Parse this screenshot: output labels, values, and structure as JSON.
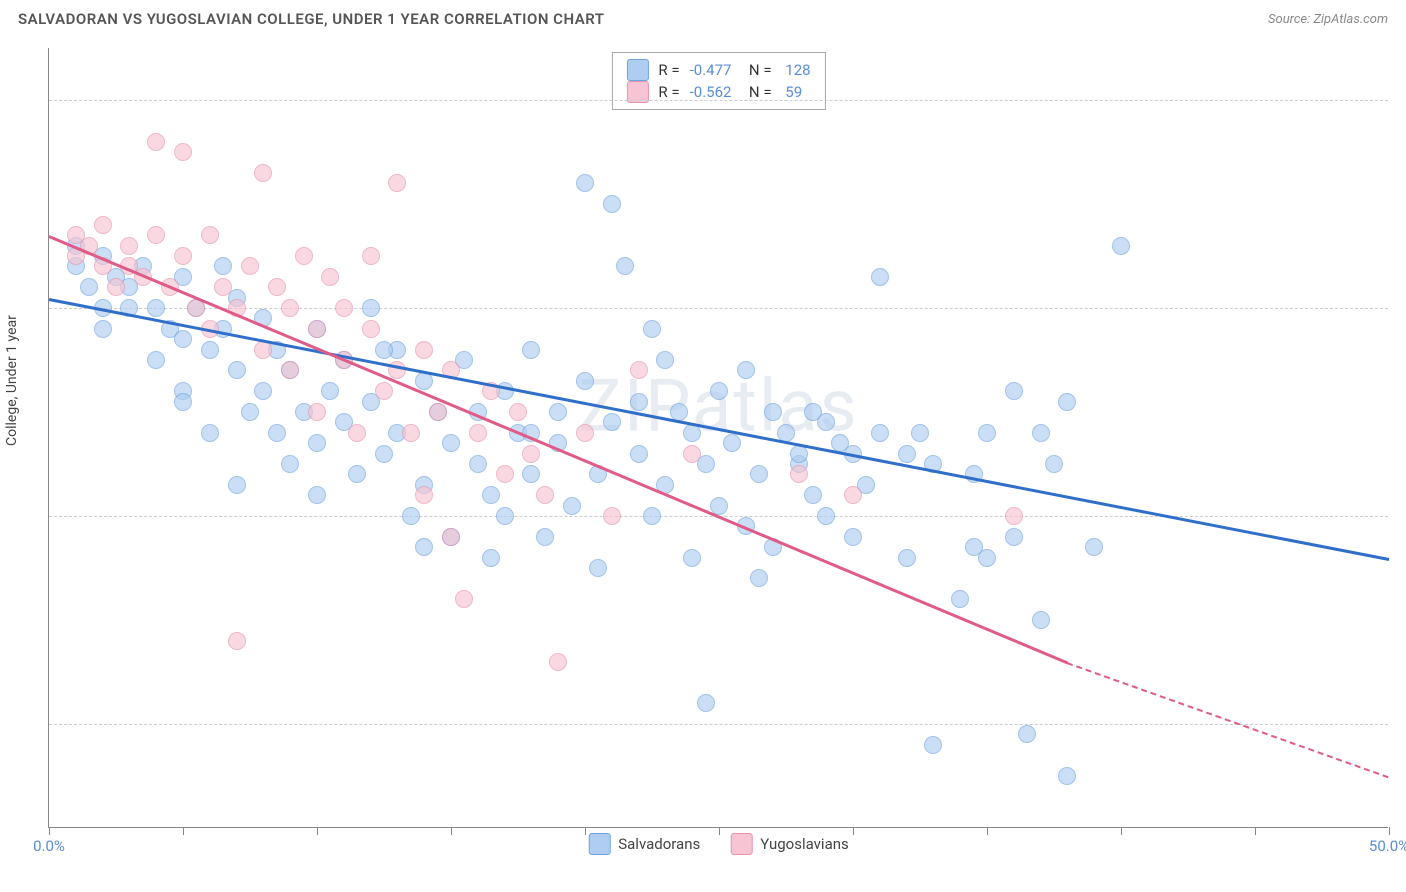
{
  "header": {
    "title": "SALVADORAN VS YUGOSLAVIAN COLLEGE, UNDER 1 YEAR CORRELATION CHART",
    "source_prefix": "Source: ",
    "source_name": "ZipAtlas.com"
  },
  "chart": {
    "type": "scatter",
    "ylabel": "College, Under 1 year",
    "watermark": "ZIPatlas",
    "background_color": "#ffffff",
    "grid_color": "#cccccc",
    "axis_color": "#888888",
    "label_color": "#5b8dd6",
    "xlim": [
      0,
      50
    ],
    "ylim": [
      10,
      85
    ],
    "x_ticks": [
      0,
      5,
      10,
      15,
      20,
      25,
      30,
      35,
      40,
      45,
      50
    ],
    "x_tick_labels": {
      "0": "0.0%",
      "50": "50.0%"
    },
    "y_gridlines": [
      20,
      40,
      60,
      80
    ],
    "y_tick_labels": {
      "20": "20.0%",
      "40": "40.0%",
      "60": "60.0%",
      "80": "80.0%"
    },
    "series": [
      {
        "name": "Salvadorans",
        "fill_color": "#aecdf0",
        "stroke_color": "#6fa3e0",
        "line_color": "#2f6fc9",
        "R": "-0.477",
        "N": "128",
        "trend_x1": 0,
        "trend_y1": 61,
        "trend_x2": 50,
        "trend_y2": 36,
        "points": [
          [
            1,
            66
          ],
          [
            1,
            64
          ],
          [
            1.5,
            62
          ],
          [
            2,
            65
          ],
          [
            2,
            60
          ],
          [
            2.5,
            63
          ],
          [
            2,
            58
          ],
          [
            3,
            62
          ],
          [
            3,
            60
          ],
          [
            3.5,
            64
          ],
          [
            4,
            55
          ],
          [
            4,
            60
          ],
          [
            4.5,
            58
          ],
          [
            5,
            63
          ],
          [
            5,
            57
          ],
          [
            5,
            52
          ],
          [
            5.5,
            60
          ],
          [
            6,
            56
          ],
          [
            6,
            48
          ],
          [
            6.5,
            58
          ],
          [
            7,
            61
          ],
          [
            7,
            54
          ],
          [
            7.5,
            50
          ],
          [
            8,
            59
          ],
          [
            8,
            52
          ],
          [
            8.5,
            56
          ],
          [
            9,
            54
          ],
          [
            9,
            45
          ],
          [
            9.5,
            50
          ],
          [
            10,
            58
          ],
          [
            10,
            47
          ],
          [
            10.5,
            52
          ],
          [
            11,
            49
          ],
          [
            11,
            55
          ],
          [
            11.5,
            44
          ],
          [
            12,
            51
          ],
          [
            12,
            60
          ],
          [
            12.5,
            46
          ],
          [
            13,
            56
          ],
          [
            13,
            48
          ],
          [
            13.5,
            40
          ],
          [
            14,
            53
          ],
          [
            14,
            43
          ],
          [
            14.5,
            50
          ],
          [
            15,
            47
          ],
          [
            15,
            38
          ],
          [
            15.5,
            55
          ],
          [
            16,
            45
          ],
          [
            16,
            50
          ],
          [
            16.5,
            42
          ],
          [
            17,
            52
          ],
          [
            17,
            40
          ],
          [
            17.5,
            48
          ],
          [
            18,
            44
          ],
          [
            18,
            56
          ],
          [
            18.5,
            38
          ],
          [
            19,
            50
          ],
          [
            19,
            47
          ],
          [
            19.5,
            41
          ],
          [
            20,
            72
          ],
          [
            20,
            53
          ],
          [
            20.5,
            44
          ],
          [
            21,
            70
          ],
          [
            21,
            49
          ],
          [
            21.5,
            64
          ],
          [
            22,
            46
          ],
          [
            22,
            51
          ],
          [
            22.5,
            40
          ],
          [
            23,
            55
          ],
          [
            23,
            43
          ],
          [
            23.5,
            50
          ],
          [
            24,
            36
          ],
          [
            24,
            48
          ],
          [
            24.5,
            22
          ],
          [
            25,
            52
          ],
          [
            25,
            41
          ],
          [
            25.5,
            47
          ],
          [
            26,
            39
          ],
          [
            26,
            54
          ],
          [
            26.5,
            44
          ],
          [
            27,
            50
          ],
          [
            27,
            37
          ],
          [
            27.5,
            48
          ],
          [
            28,
            45
          ],
          [
            28,
            46
          ],
          [
            28.5,
            42
          ],
          [
            29,
            49
          ],
          [
            29,
            40
          ],
          [
            29.5,
            47
          ],
          [
            30,
            38
          ],
          [
            30,
            46
          ],
          [
            31,
            63
          ],
          [
            31,
            48
          ],
          [
            32,
            36
          ],
          [
            32,
            46
          ],
          [
            33,
            45
          ],
          [
            33,
            18
          ],
          [
            34,
            32
          ],
          [
            34.5,
            44
          ],
          [
            35,
            48
          ],
          [
            35,
            36
          ],
          [
            36,
            52
          ],
          [
            36,
            38
          ],
          [
            36.5,
            19
          ],
          [
            37,
            48
          ],
          [
            37,
            30
          ],
          [
            38,
            15
          ],
          [
            38,
            51
          ],
          [
            39,
            37
          ],
          [
            40,
            66
          ],
          [
            5,
            51
          ],
          [
            6.5,
            64
          ],
          [
            7,
            43
          ],
          [
            8.5,
            48
          ],
          [
            10,
            42
          ],
          [
            12.5,
            56
          ],
          [
            14,
            37
          ],
          [
            16.5,
            36
          ],
          [
            18,
            48
          ],
          [
            20.5,
            35
          ],
          [
            22.5,
            58
          ],
          [
            24.5,
            45
          ],
          [
            26.5,
            34
          ],
          [
            28.5,
            50
          ],
          [
            30.5,
            43
          ],
          [
            32.5,
            48
          ],
          [
            34.5,
            37
          ],
          [
            37.5,
            45
          ]
        ]
      },
      {
        "name": "Yugoslavians",
        "fill_color": "#f6c4d2",
        "stroke_color": "#e893ae",
        "line_color": "#e05b87",
        "R": "-0.562",
        "N": "59",
        "trend_x1": 0,
        "trend_y1": 67,
        "trend_x2": 38,
        "trend_y2": 26,
        "trend_dash_x2": 50,
        "trend_dash_y2": 15,
        "points": [
          [
            1,
            67
          ],
          [
            1,
            65
          ],
          [
            1.5,
            66
          ],
          [
            2,
            68
          ],
          [
            2,
            64
          ],
          [
            2.5,
            62
          ],
          [
            3,
            66
          ],
          [
            3,
            64
          ],
          [
            3.5,
            63
          ],
          [
            4,
            76
          ],
          [
            4,
            67
          ],
          [
            4.5,
            62
          ],
          [
            5,
            65
          ],
          [
            5,
            75
          ],
          [
            5.5,
            60
          ],
          [
            6,
            67
          ],
          [
            6,
            58
          ],
          [
            6.5,
            62
          ],
          [
            7,
            28
          ],
          [
            7,
            60
          ],
          [
            7.5,
            64
          ],
          [
            8,
            56
          ],
          [
            8,
            73
          ],
          [
            8.5,
            62
          ],
          [
            9,
            54
          ],
          [
            9,
            60
          ],
          [
            9.5,
            65
          ],
          [
            10,
            58
          ],
          [
            10,
            50
          ],
          [
            10.5,
            63
          ],
          [
            11,
            55
          ],
          [
            11,
            60
          ],
          [
            11.5,
            48
          ],
          [
            12,
            58
          ],
          [
            12,
            65
          ],
          [
            12.5,
            52
          ],
          [
            13,
            72
          ],
          [
            13,
            54
          ],
          [
            13.5,
            48
          ],
          [
            14,
            56
          ],
          [
            14,
            42
          ],
          [
            14.5,
            50
          ],
          [
            15,
            38
          ],
          [
            15,
            54
          ],
          [
            15.5,
            32
          ],
          [
            16,
            48
          ],
          [
            16.5,
            52
          ],
          [
            17,
            44
          ],
          [
            17.5,
            50
          ],
          [
            18,
            46
          ],
          [
            18.5,
            42
          ],
          [
            19,
            26
          ],
          [
            20,
            48
          ],
          [
            21,
            40
          ],
          [
            22,
            54
          ],
          [
            24,
            46
          ],
          [
            28,
            44
          ],
          [
            30,
            42
          ],
          [
            36,
            40
          ]
        ]
      }
    ],
    "bottom_legend": [
      {
        "label": "Salvadorans",
        "fill": "#aecdf0",
        "stroke": "#6fa3e0"
      },
      {
        "label": "Yugoslavians",
        "fill": "#f6c4d2",
        "stroke": "#e893ae"
      }
    ]
  }
}
